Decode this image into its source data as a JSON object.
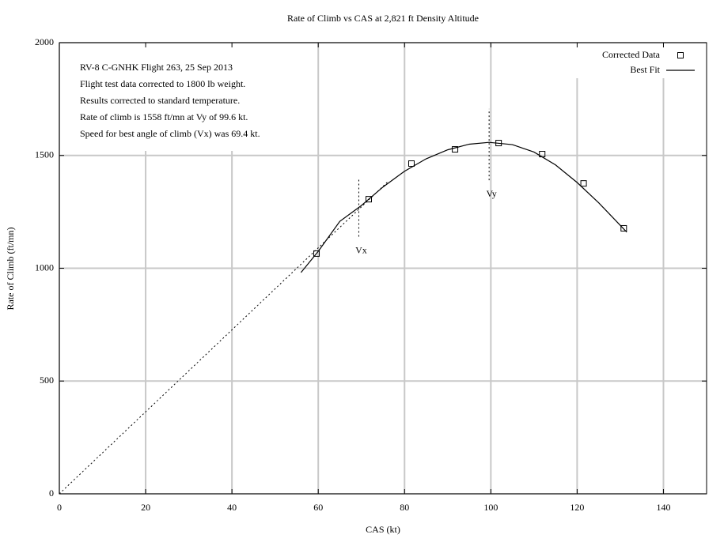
{
  "chart_data": {
    "type": "line",
    "title": "Rate of Climb vs CAS at 2,821 ft Density Altitude",
    "x_label": "CAS (kt)",
    "y_label": "Rate of Climb (ft/mn)",
    "xlim": [
      0,
      150
    ],
    "xticks": [
      0,
      20,
      40,
      60,
      80,
      100,
      120,
      140
    ],
    "ylim": [
      0,
      2000
    ],
    "yticks": [
      0,
      500,
      1000,
      1500,
      2000
    ],
    "grid": true,
    "legend": "top-right",
    "annotations": [
      "RV-8 C-GNHK Flight 263, 25 Sep 2013",
      "Flight test data corrected to 1800 lb weight.",
      "Results corrected to standard temperature.",
      "Rate of climb is 1558 ft/mn at Vy of 99.6 kt.",
      "Speed for best angle of climb (Vx) was 69.4 kt."
    ],
    "series": [
      {
        "name": "Corrected Data",
        "marker": "square",
        "color": "#000000",
        "x": [
          59.6,
          71.7,
          81.6,
          91.7,
          101.8,
          111.9,
          121.5,
          130.8
        ],
        "values": [
          1065,
          1306,
          1464,
          1527,
          1555,
          1506,
          1376,
          1177
        ]
      },
      {
        "name": "Best Fit",
        "marker": "line",
        "color": "#000000",
        "x": [
          56,
          60,
          65,
          70,
          75,
          80,
          85,
          90,
          95,
          99.6,
          105,
          110,
          115,
          120,
          125,
          131.5
        ],
        "values": [
          981,
          1075,
          1208,
          1278,
          1360,
          1430,
          1485,
          1525,
          1550,
          1558,
          1548,
          1515,
          1458,
          1380,
          1290,
          1160
        ]
      }
    ],
    "reference_lines": [
      {
        "x": [
          0,
          76.1
        ],
        "values": [
          0,
          1383
        ]
      },
      {
        "x": [
          69.4,
          69.4
        ],
        "values": [
          1140,
          1400
        ],
        "label": "Vx"
      },
      {
        "x": [
          99.6,
          99.6
        ],
        "values": [
          1390,
          1706
        ],
        "label": "Vy"
      }
    ]
  }
}
